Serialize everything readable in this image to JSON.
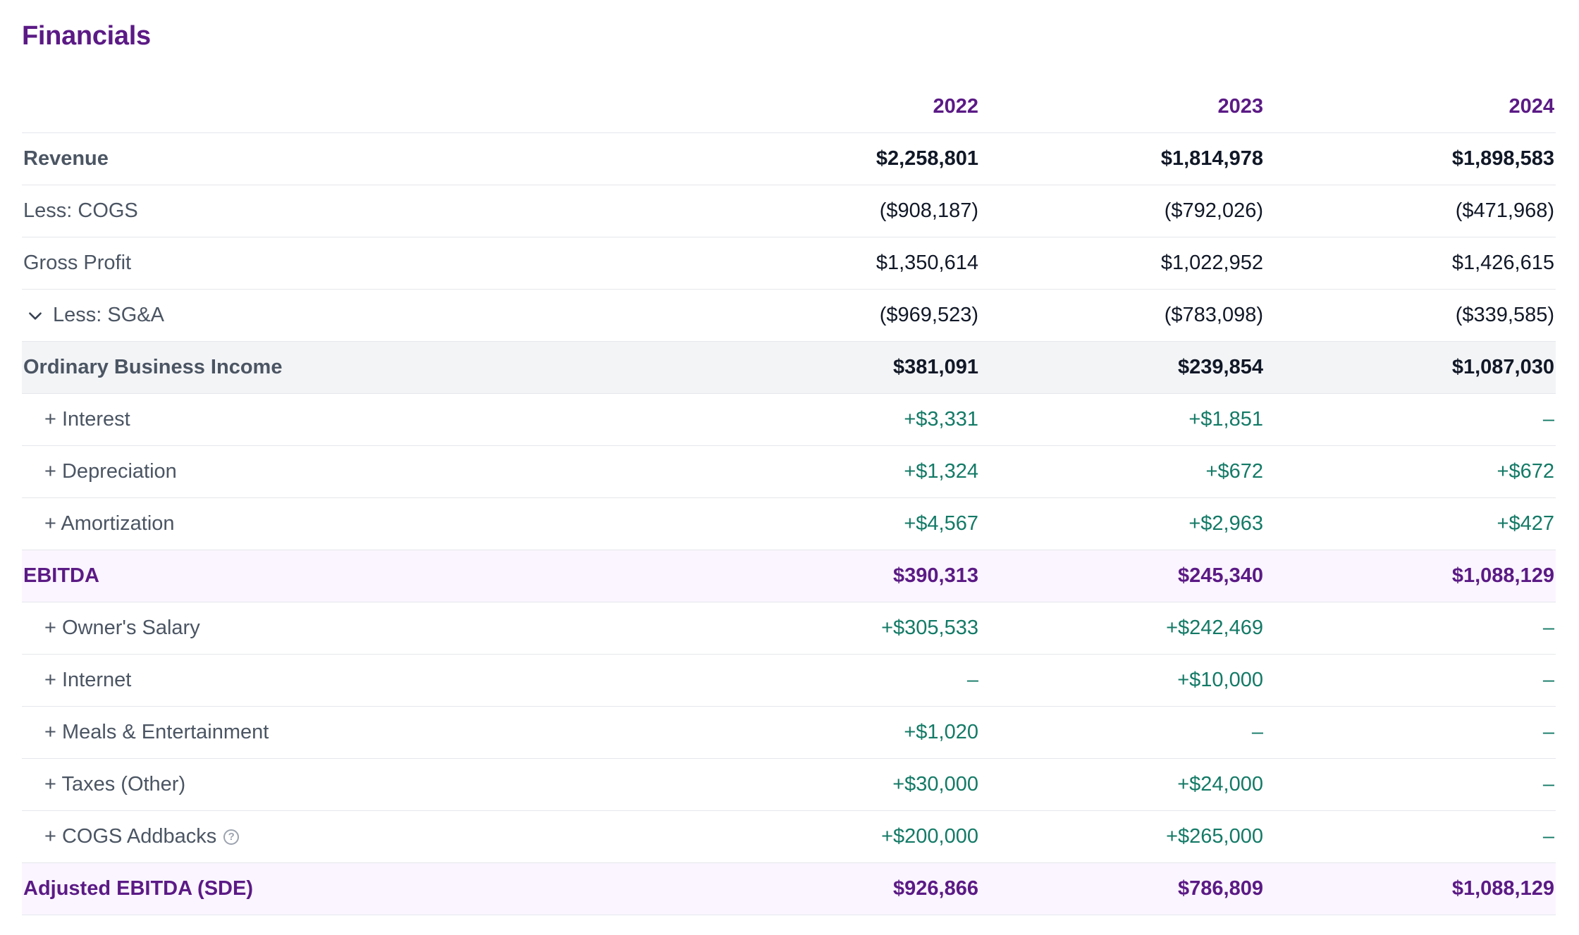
{
  "title": "Financials",
  "years": [
    "2022",
    "2023",
    "2024"
  ],
  "rows": [
    {
      "label": "Revenue",
      "values": [
        "$2,258,801",
        "$1,814,978",
        "$1,898,583"
      ]
    },
    {
      "label": "Less: COGS",
      "values": [
        "($908,187)",
        "($792,026)",
        "($471,968)"
      ]
    },
    {
      "label": "Gross Profit",
      "values": [
        "$1,350,614",
        "$1,022,952",
        "$1,426,615"
      ]
    },
    {
      "label": "Less: SG&A",
      "values": [
        "($969,523)",
        "($783,098)",
        "($339,585)"
      ]
    },
    {
      "label": "Ordinary Business Income",
      "values": [
        "$381,091",
        "$239,854",
        "$1,087,030"
      ]
    },
    {
      "label": "+ Interest",
      "values": [
        "+$3,331",
        "+$1,851",
        "–"
      ]
    },
    {
      "label": "+ Depreciation",
      "values": [
        "+$1,324",
        "+$672",
        "+$672"
      ]
    },
    {
      "label": "+ Amortization",
      "values": [
        "+$4,567",
        "+$2,963",
        "+$427"
      ]
    },
    {
      "label": "EBITDA",
      "values": [
        "$390,313",
        "$245,340",
        "$1,088,129"
      ]
    },
    {
      "label": "+ Owner's Salary",
      "values": [
        "+$305,533",
        "+$242,469",
        "–"
      ]
    },
    {
      "label": "+ Internet",
      "values": [
        "–",
        "+$10,000",
        "–"
      ]
    },
    {
      "label": "+ Meals & Entertainment",
      "values": [
        "+$1,020",
        "–",
        "–"
      ]
    },
    {
      "label": "+ Taxes (Other)",
      "values": [
        "+$30,000",
        "+$24,000",
        "–"
      ]
    },
    {
      "label": "+ COGS Addbacks",
      "values": [
        "+$200,000",
        "+$265,000",
        "–"
      ]
    },
    {
      "label": "Adjusted EBITDA (SDE)",
      "values": [
        "$926,866",
        "$786,809",
        "$1,088,129"
      ]
    }
  ],
  "colors": {
    "accent_purple": "#5b1a85",
    "addback_green": "#137a66",
    "highlight_grey": "#f3f4f6",
    "highlight_pink": "#faf5ff"
  }
}
